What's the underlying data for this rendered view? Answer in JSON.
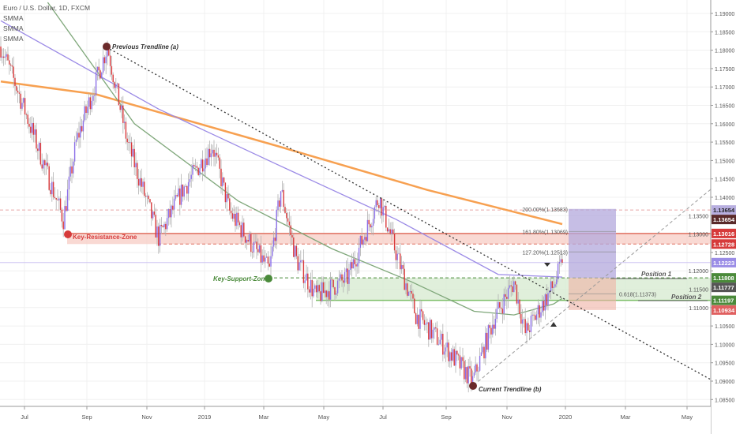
{
  "legend": {
    "symbol": "Euro / U.S. Dollar, 1D, FXCM",
    "indicators": [
      "SMMA",
      "SMMA",
      "SMMA"
    ]
  },
  "chart_data": {
    "type": "candlestick",
    "title": "Euro / U.S. Dollar, 1D, FXCM",
    "ylim": [
      1.08,
      1.19
    ],
    "y_ticks": [
      1.085,
      1.09,
      1.095,
      1.1,
      1.105,
      1.11,
      1.115,
      1.12,
      1.125,
      1.13,
      1.135,
      1.14,
      1.145,
      1.15,
      1.155,
      1.16,
      1.165,
      1.17,
      1.175,
      1.18,
      1.185,
      1.19
    ],
    "x_ticks": [
      "Jul",
      "Sep",
      "Nov",
      "2019",
      "Mar",
      "May",
      "Jul",
      "Sep",
      "Nov",
      "2020",
      "Mar",
      "May"
    ],
    "approx_close_path": [
      [
        0,
        1.181
      ],
      [
        11,
        1.17
      ],
      [
        44,
        1.134
      ],
      [
        53,
        1.155
      ],
      [
        75,
        1.181
      ],
      [
        89,
        1.155
      ],
      [
        111,
        1.129
      ],
      [
        128,
        1.142
      ],
      [
        149,
        1.154
      ],
      [
        161,
        1.136
      ],
      [
        189,
        1.12
      ],
      [
        197,
        1.142
      ],
      [
        208,
        1.123
      ],
      [
        222,
        1.113
      ],
      [
        244,
        1.118
      ],
      [
        266,
        1.14
      ],
      [
        278,
        1.125
      ],
      [
        292,
        1.108
      ],
      [
        311,
        1.1
      ],
      [
        332,
        1.09
      ],
      [
        347,
        1.107
      ],
      [
        361,
        1.117
      ],
      [
        369,
        1.103
      ],
      [
        389,
        1.116
      ],
      [
        395,
        1.1222
      ]
    ],
    "smma": [
      {
        "name": "SMMA slow",
        "color": "#f7a050",
        "points": [
          [
            0,
            1.1715
          ],
          [
            67,
            1.168
          ],
          [
            194,
            1.154
          ],
          [
            300,
            1.142
          ],
          [
            395,
            1.1327
          ]
        ]
      },
      {
        "name": "SMMA mid",
        "color": "#9b8ae6",
        "points": [
          [
            0,
            1.188
          ],
          [
            111,
            1.164
          ],
          [
            194,
            1.149
          ],
          [
            278,
            1.134
          ],
          [
            350,
            1.119
          ],
          [
            395,
            1.1183
          ]
        ]
      },
      {
        "name": "SMMA fast",
        "color": "#7fa77a",
        "points": [
          [
            33,
            1.193
          ],
          [
            94,
            1.16
          ],
          [
            167,
            1.139
          ],
          [
            233,
            1.126
          ],
          [
            289,
            1.117
          ],
          [
            333,
            1.109
          ],
          [
            361,
            1.108
          ],
          [
            389,
            1.111
          ],
          [
            395,
            1.1125
          ]
        ]
      }
    ],
    "annotations": {
      "previous_trendline": "Previous Trendline (a)",
      "current_trendline": "Current Trendline (b)",
      "key_resistance": "Key-Resistance-Zone",
      "key_support": "Key-Support-Zone",
      "position_1": "Position 1",
      "position_2": "Position 2",
      "fib_200": "200.00%(1.13683)",
      "fib_161": "161.80%(1.13069)",
      "fib_127": "127.20%(1.12513)",
      "fib_0618": "0.618(1.11373)"
    },
    "zones": {
      "resistance": [
        1.12728,
        1.13016
      ],
      "support": [
        1.11197,
        1.11808
      ]
    },
    "price_badges": [
      {
        "value": "1.13654",
        "price": 1.13654,
        "bg": "#b8afe0",
        "fg": "#222"
      },
      {
        "value": "1.13654",
        "price": 1.13654,
        "bg": "#5a2a2a",
        "fg": "#fff",
        "offset": 1
      },
      {
        "value": "1.13016",
        "price": 1.13016,
        "bg": "#d63a3a",
        "fg": "#fff"
      },
      {
        "value": "1.12728",
        "price": 1.12728,
        "bg": "#d63a3a",
        "fg": "#fff"
      },
      {
        "value": "1.12223",
        "price": 1.12223,
        "bg": "#9a8ce6",
        "fg": "#fff"
      },
      {
        "value": "1.11808",
        "price": 1.11808,
        "bg": "#4a8a3a",
        "fg": "#fff"
      },
      {
        "value": "1.11777",
        "price": 1.11777,
        "bg": "#555555",
        "fg": "#fff"
      },
      {
        "value": "1.11197",
        "price": 1.11197,
        "bg": "#4a8a3a",
        "fg": "#fff"
      },
      {
        "value": "1.10934",
        "price": 1.10934,
        "bg": "#e06060",
        "fg": "#fff"
      }
    ],
    "colors": {
      "up": "#8b6fe8",
      "down": "#d9383a",
      "wick": "#b0b0b0"
    }
  }
}
